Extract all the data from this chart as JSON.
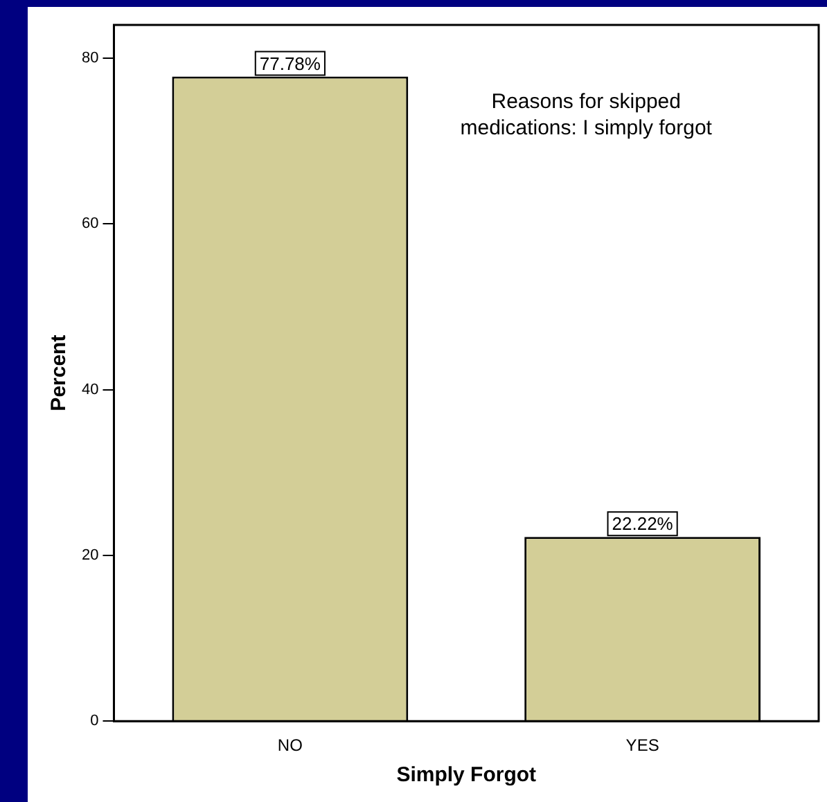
{
  "chart_data": {
    "type": "bar",
    "xlabel": "Simply Forgot",
    "ylabel": "Percent",
    "categories": [
      "NO",
      "YES"
    ],
    "values": [
      77.78,
      22.22
    ],
    "value_labels": [
      "77.78%",
      "22.22%"
    ],
    "color": "#d3ce97",
    "ylim": [
      0,
      84
    ],
    "yticks": [
      0,
      20,
      40,
      60,
      80
    ],
    "grid": false,
    "legend": false,
    "annotations": [
      "Reasons for skipped\nmedications: I simply forgot"
    ]
  }
}
